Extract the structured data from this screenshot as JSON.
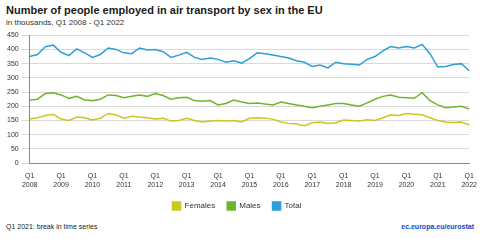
{
  "chart_data": {
    "type": "line",
    "title": "Number of people employed in air transport by sex in the EU",
    "subtitle": "in thousands, Q1 2008 - Q1 2022",
    "annotations": [
      "Q1 2021: break in time series"
    ],
    "source": "ec.europa.eu/eurostat",
    "categories": [
      "Q1 2008",
      null,
      null,
      null,
      "Q1 2009",
      null,
      null,
      null,
      "Q1 2010",
      null,
      null,
      null,
      "Q1 2011",
      null,
      null,
      null,
      "Q1 2012",
      null,
      null,
      null,
      "Q1 2013",
      null,
      null,
      null,
      "Q1 2014",
      null,
      null,
      null,
      "Q1 2015",
      null,
      null,
      null,
      "Q1 2016",
      null,
      null,
      null,
      "Q1 2017",
      null,
      null,
      null,
      "Q1 2018",
      null,
      null,
      null,
      "Q1 2019",
      null,
      null,
      null,
      "Q1 2020",
      null,
      null,
      null,
      "Q1 2021",
      null,
      null,
      null,
      "Q1 2022"
    ],
    "series": [
      {
        "name": "Females",
        "color": "#c9c81e",
        "values": [
          155,
          160,
          168,
          172,
          155,
          150,
          162,
          160,
          152,
          158,
          175,
          170,
          158,
          165,
          162,
          160,
          155,
          158,
          148,
          150,
          158,
          150,
          145,
          148,
          150,
          148,
          150,
          145,
          158,
          160,
          158,
          155,
          145,
          140,
          138,
          132,
          142,
          145,
          140,
          142,
          152,
          150,
          148,
          153,
          150,
          160,
          170,
          168,
          175,
          172,
          170,
          160,
          150,
          145,
          143,
          145,
          135
        ]
      },
      {
        "name": "Males",
        "color": "#6fb52c",
        "values": [
          222,
          225,
          245,
          248,
          240,
          228,
          235,
          222,
          220,
          225,
          240,
          238,
          230,
          235,
          240,
          235,
          245,
          238,
          225,
          230,
          232,
          220,
          218,
          220,
          205,
          210,
          222,
          215,
          210,
          212,
          208,
          205,
          215,
          210,
          205,
          200,
          195,
          200,
          205,
          210,
          210,
          205,
          200,
          212,
          225,
          235,
          240,
          232,
          230,
          228,
          248,
          220,
          205,
          195,
          198,
          200,
          190
        ]
      },
      {
        "name": "Total",
        "color": "#2a9fd8",
        "values": [
          375,
          382,
          410,
          415,
          390,
          378,
          402,
          388,
          372,
          382,
          405,
          400,
          388,
          385,
          405,
          398,
          400,
          392,
          372,
          380,
          390,
          372,
          365,
          370,
          365,
          355,
          360,
          352,
          368,
          388,
          385,
          380,
          375,
          370,
          360,
          355,
          340,
          345,
          335,
          355,
          350,
          348,
          345,
          365,
          375,
          395,
          410,
          405,
          410,
          405,
          418,
          385,
          338,
          340,
          347,
          350,
          325
        ]
      }
    ],
    "ylim": [
      0,
      450
    ],
    "yticks": [
      0,
      50,
      100,
      150,
      200,
      250,
      300,
      350,
      400,
      450
    ],
    "grid": true,
    "legend": "bottom"
  }
}
